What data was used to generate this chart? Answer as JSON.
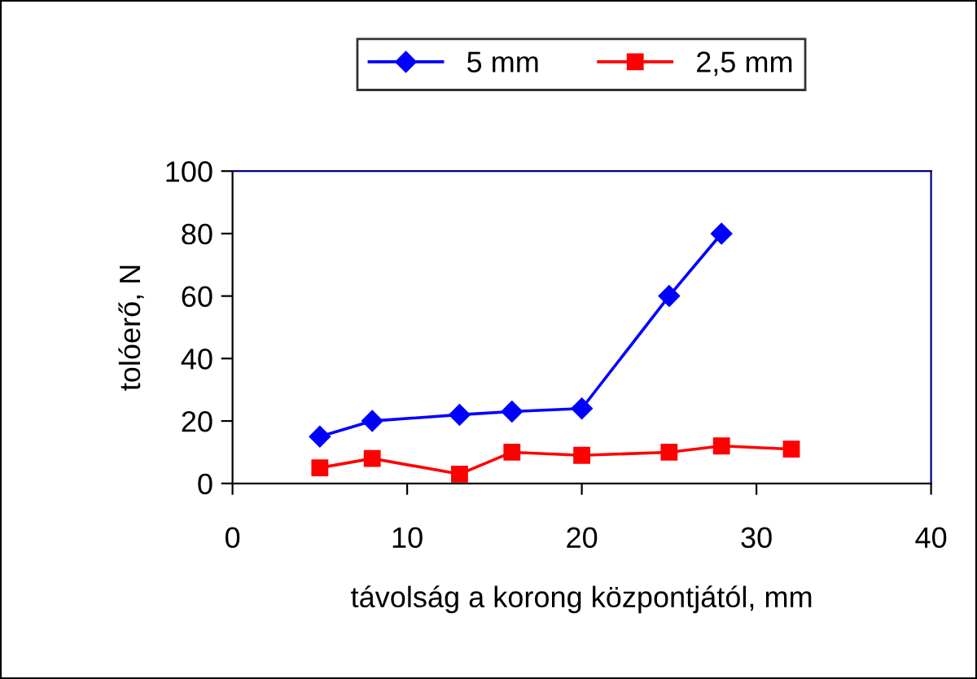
{
  "chart_data": {
    "type": "line",
    "xlabel": "távolság a korong központjától, mm",
    "ylabel": "tolóerő, N",
    "xlim": [
      0,
      40
    ],
    "xticks": [
      0,
      10,
      20,
      30,
      40
    ],
    "ylim": [
      0,
      100
    ],
    "yticks": [
      0,
      20,
      40,
      60,
      80,
      100
    ],
    "grid": false,
    "legend": "top",
    "series": [
      {
        "name": "5 mm",
        "color": "#0000ff",
        "marker": "diamond",
        "x": [
          5,
          8,
          13,
          16,
          20,
          25,
          28
        ],
        "values": [
          15,
          20,
          22,
          23,
          24,
          60,
          80
        ]
      },
      {
        "name": "2,5 mm",
        "color": "#ff0000",
        "marker": "square",
        "x": [
          5,
          8,
          13,
          16,
          20,
          25,
          28,
          32
        ],
        "values": [
          5,
          8,
          3,
          10,
          9,
          10,
          12,
          11
        ]
      }
    ]
  }
}
